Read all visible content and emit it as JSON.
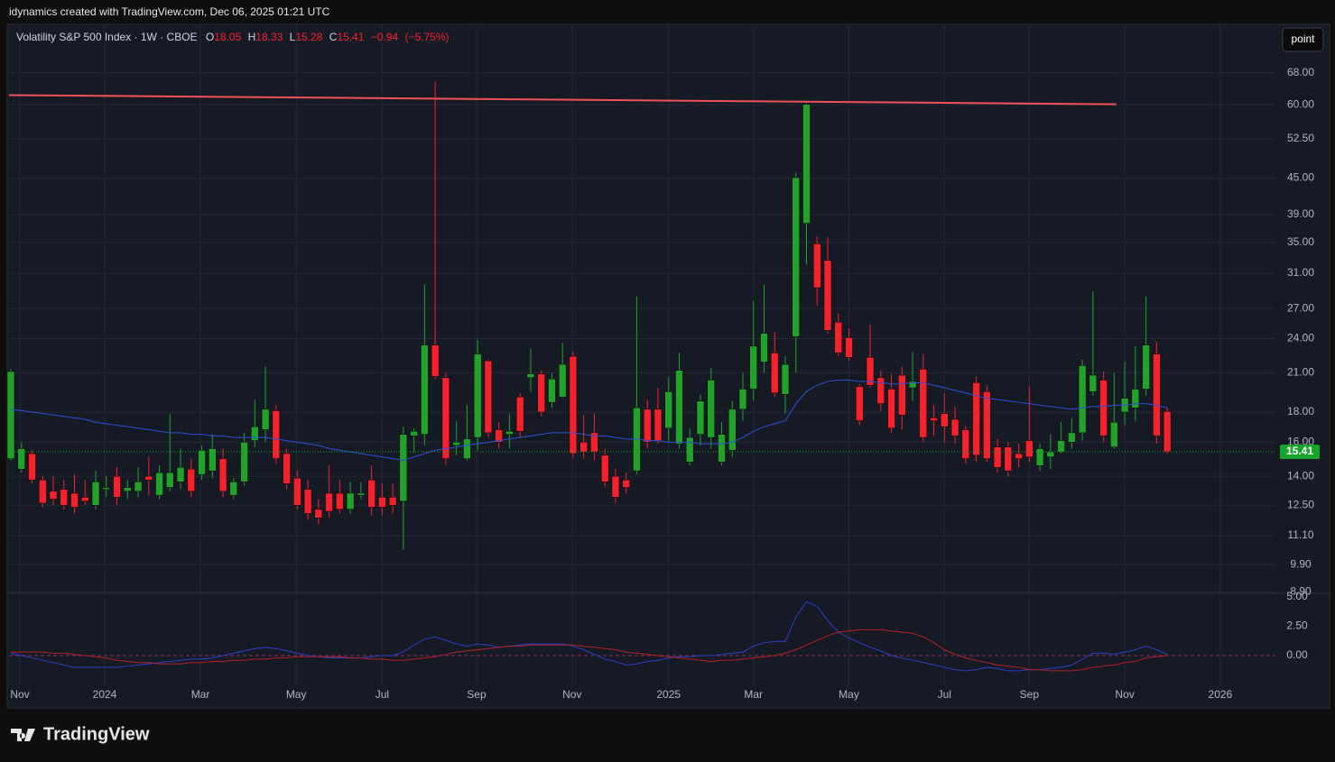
{
  "header": {
    "caption": "idynamics created with TradingView.com, Dec 06, 2025 01:21 UTC",
    "button": "point"
  },
  "footer": {
    "brand": "TradingView"
  },
  "chart_data": [
    {
      "type": "candlestick",
      "title": "Volatility S&P 500 Index · 1W · CBOE",
      "ohlc_letters": [
        "O",
        "H",
        "L",
        "C"
      ],
      "change": {
        "value": -0.94,
        "label": "−0.94"
      },
      "change_percent": {
        "value": -5.75,
        "label": "(−5.75%)"
      },
      "up_color": "#22a22b",
      "down_color": "#f5212c",
      "log_scale": true,
      "grid": true,
      "ylim": [
        8.85,
        81.9
      ],
      "yticks": [
        {
          "value": 68,
          "label": "68.00"
        },
        {
          "value": 60,
          "label": "60.00"
        },
        {
          "value": 52.5,
          "label": "52.50"
        },
        {
          "value": 45,
          "label": "45.00"
        },
        {
          "value": 39,
          "label": "39.00"
        },
        {
          "value": 35,
          "label": "35.00"
        },
        {
          "value": 31,
          "label": "31.00"
        },
        {
          "value": 27,
          "label": "27.00"
        },
        {
          "value": 24,
          "label": "24.00"
        },
        {
          "value": 21,
          "label": "21.00"
        },
        {
          "value": 18,
          "label": "18.00"
        },
        {
          "value": 16,
          "label": "16.00"
        },
        {
          "value": 14,
          "label": "14.00"
        },
        {
          "value": 12.5,
          "label": "12.50"
        },
        {
          "value": 11.1,
          "label": "11.10"
        },
        {
          "value": 9.9,
          "label": "9.90"
        },
        {
          "value": 8.9,
          "label": "8.90"
        }
      ],
      "xlim": [
        -0.17,
        119.2
      ],
      "xticks": [
        {
          "value": 0.85,
          "label": "Nov"
        },
        {
          "value": 8.85,
          "label": "2024"
        },
        {
          "value": 17.87,
          "label": "Mar"
        },
        {
          "value": 26.9,
          "label": "May"
        },
        {
          "value": 35.0,
          "label": "Jul"
        },
        {
          "value": 43.9,
          "label": "Sep"
        },
        {
          "value": 52.9,
          "label": "Nov"
        },
        {
          "value": 62.0,
          "label": "2025"
        },
        {
          "value": 70.0,
          "label": "Mar"
        },
        {
          "value": 79.0,
          "label": "May"
        },
        {
          "value": 88.0,
          "label": "Jul"
        },
        {
          "value": 96.0,
          "label": "Sep"
        },
        {
          "value": 105.0,
          "label": "Nov"
        },
        {
          "value": 114.0,
          "label": "2026"
        }
      ],
      "open": [
        15.0,
        14.4,
        15.3,
        13.8,
        13.2,
        13.3,
        13.1,
        12.9,
        12.5,
        13.3,
        14.0,
        13.2,
        13.2,
        14.0,
        13.0,
        13.4,
        13.7,
        14.4,
        14.1,
        14.3,
        15.0,
        13.0,
        13.7,
        16.1,
        16.8,
        18.1,
        15.3,
        13.9,
        13.3,
        12.3,
        13.1,
        13.1,
        12.3,
        13.0,
        13.8,
        12.9,
        12.9,
        12.7,
        16.4,
        16.5,
        23.4,
        20.6,
        15.8,
        15.0,
        16.3,
        22.0,
        16.8,
        16.5,
        19.1,
        20.6,
        20.9,
        18.7,
        19.1,
        22.4,
        16.0,
        16.6,
        15.2,
        14.0,
        13.8,
        14.3,
        18.2,
        18.2,
        16.9,
        15.9,
        14.8,
        16.5,
        16.3,
        14.8,
        15.5,
        18.2,
        19.7,
        21.9,
        22.7,
        19.3,
        24.2,
        37.7,
        34.8,
        32.6,
        25.6,
        24.1,
        19.9,
        22.3,
        20.6,
        19.7,
        20.8,
        19.8,
        21.3,
        17.6,
        17.9,
        17.5,
        16.8,
        20.2,
        19.5,
        15.7,
        15.7,
        15.3,
        16.1,
        14.6,
        15.1,
        15.4,
        16.0,
        16.6,
        19.5,
        20.4,
        15.7,
        18.0,
        18.3,
        19.7,
        22.6,
        18.05
      ],
      "high": [
        21.3,
        16.0,
        15.5,
        14.0,
        14.0,
        13.8,
        14.1,
        13.8,
        14.3,
        14.0,
        14.5,
        13.8,
        14.5,
        15.1,
        14.6,
        17.9,
        15.6,
        15.0,
        15.8,
        16.5,
        15.6,
        13.9,
        16.6,
        18.9,
        21.5,
        18.5,
        15.6,
        14.3,
        13.8,
        12.8,
        14.6,
        13.8,
        13.7,
        13.7,
        14.6,
        13.6,
        13.6,
        17.0,
        16.9,
        29.7,
        65.7,
        21.0,
        17.4,
        18.5,
        23.9,
        22.1,
        17.3,
        17.9,
        19.4,
        23.1,
        21.2,
        21.0,
        23.6,
        22.8,
        17.8,
        17.9,
        15.6,
        14.4,
        14.2,
        28.3,
        18.9,
        19.8,
        20.6,
        22.7,
        16.9,
        19.3,
        21.4,
        17.3,
        18.8,
        21.0,
        27.8,
        29.6,
        24.6,
        22.4,
        46.0,
        60.3,
        35.8,
        35.7,
        26.5,
        25.0,
        20.1,
        25.4,
        21.2,
        20.9,
        21.5,
        22.8,
        22.6,
        18.5,
        19.4,
        18.4,
        17.1,
        20.7,
        20.0,
        16.2,
        16.0,
        15.9,
        19.9,
        15.9,
        16.5,
        17.3,
        17.6,
        22.1,
        28.9,
        21.1,
        21.0,
        21.9,
        23.3,
        28.3,
        23.7,
        18.33
      ],
      "low": [
        14.9,
        14.2,
        13.6,
        12.4,
        12.5,
        12.3,
        12.1,
        12.5,
        12.3,
        12.9,
        12.5,
        12.8,
        12.9,
        13.0,
        12.8,
        13.2,
        13.3,
        12.9,
        13.8,
        13.9,
        12.9,
        12.8,
        13.5,
        15.7,
        16.0,
        14.7,
        13.3,
        12.3,
        11.8,
        11.6,
        11.9,
        12.1,
        12.1,
        12.8,
        12.0,
        12.0,
        12.1,
        10.5,
        15.4,
        15.8,
        20.5,
        14.6,
        15.2,
        14.9,
        15.5,
        16.3,
        15.6,
        15.6,
        16.3,
        19.5,
        17.7,
        18.3,
        19.0,
        15.0,
        15.0,
        14.9,
        13.4,
        12.6,
        13.1,
        14.1,
        15.6,
        15.9,
        16.0,
        15.6,
        14.6,
        15.8,
        15.6,
        14.6,
        15.1,
        17.4,
        18.8,
        21.0,
        19.1,
        17.9,
        21.0,
        32.1,
        27.3,
        24.5,
        22.4,
        22.0,
        17.1,
        19.8,
        18.1,
        16.6,
        16.8,
        18.8,
        16.0,
        16.4,
        16.0,
        15.9,
        14.7,
        14.8,
        14.8,
        14.2,
        14.0,
        14.5,
        14.8,
        14.3,
        14.4,
        15.3,
        15.6,
        16.1,
        19.2,
        16.0,
        15.6,
        17.1,
        17.4,
        19.2,
        15.9,
        15.28
      ],
      "close": [
        21.1,
        15.6,
        13.8,
        12.6,
        12.8,
        12.5,
        12.4,
        12.7,
        13.7,
        13.4,
        12.9,
        13.4,
        13.7,
        13.8,
        14.2,
        14.2,
        14.5,
        13.2,
        15.5,
        15.6,
        13.2,
        13.7,
        16.0,
        17.0,
        18.2,
        15.0,
        13.6,
        12.5,
        12.1,
        11.9,
        12.2,
        12.3,
        13.1,
        13.1,
        12.4,
        12.4,
        12.5,
        16.5,
        16.7,
        23.4,
        20.7,
        15.0,
        16.0,
        16.2,
        22.6,
        16.6,
        16.0,
        16.7,
        16.7,
        20.9,
        18.0,
        20.5,
        21.7,
        15.3,
        15.4,
        15.4,
        13.7,
        12.9,
        13.4,
        18.3,
        16.0,
        16.1,
        19.5,
        21.2,
        16.3,
        18.8,
        20.4,
        16.5,
        18.2,
        19.7,
        23.3,
        24.5,
        19.4,
        21.7,
        45.1,
        60.1,
        29.3,
        24.8,
        22.7,
        22.3,
        17.4,
        20.0,
        18.6,
        16.9,
        17.8,
        20.3,
        16.3,
        17.4,
        17.0,
        16.4,
        15.0,
        15.2,
        15.0,
        14.5,
        14.3,
        15.0,
        15.1,
        15.6,
        15.4,
        16.1,
        16.6,
        21.6,
        20.8,
        16.4,
        17.3,
        19.0,
        19.7,
        23.4,
        16.4,
        15.41
      ],
      "ma": {
        "color": "#2f4fd6",
        "values": [
          18.2,
          18.1,
          18.0,
          17.9,
          17.8,
          17.7,
          17.6,
          17.5,
          17.3,
          17.2,
          17.1,
          17.0,
          16.9,
          16.8,
          16.7,
          16.6,
          16.6,
          16.5,
          16.5,
          16.4,
          16.4,
          16.3,
          16.3,
          16.3,
          16.3,
          16.2,
          16.1,
          16.0,
          15.9,
          15.8,
          15.6,
          15.5,
          15.4,
          15.3,
          15.2,
          15.1,
          15.0,
          14.9,
          15.1,
          15.3,
          15.5,
          15.6,
          15.7,
          15.8,
          15.9,
          16.0,
          16.1,
          16.2,
          16.3,
          16.4,
          16.5,
          16.6,
          16.6,
          16.6,
          16.5,
          16.4,
          16.4,
          16.3,
          16.2,
          16.2,
          16.1,
          16.1,
          16.0,
          16.0,
          16.0,
          15.9,
          15.9,
          15.9,
          16.0,
          16.3,
          16.7,
          17.0,
          17.2,
          17.4,
          18.6,
          19.5,
          20.0,
          20.3,
          20.4,
          20.4,
          20.3,
          20.3,
          20.2,
          20.1,
          20.1,
          20.2,
          20.2,
          20.0,
          19.8,
          19.6,
          19.4,
          19.2,
          19.0,
          18.9,
          18.8,
          18.7,
          18.6,
          18.5,
          18.4,
          18.3,
          18.2,
          18.3,
          18.4,
          18.4,
          18.5,
          18.5,
          18.6,
          18.6,
          18.5,
          18.3
        ]
      },
      "trend_line": {
        "color": "#f0525a",
        "x": [
          -0.17,
          104.2
        ],
        "y": [
          62.3,
          60.1
        ]
      },
      "last_price_color": "#16a52a"
    },
    {
      "type": "line",
      "ylim": [
        -2.54,
        5.31
      ],
      "yticks": [
        {
          "value": 5,
          "label": "5.00"
        },
        {
          "value": 2.5,
          "label": "2.50"
        },
        {
          "value": 0,
          "label": "0.00"
        }
      ],
      "series": [
        {
          "color": "#2a3fc6",
          "values": [
            0.2,
            0.0,
            -0.2,
            -0.4,
            -0.6,
            -0.8,
            -1.0,
            -1.0,
            -1.0,
            -1.0,
            -1.0,
            -0.9,
            -0.8,
            -0.7,
            -0.6,
            -0.5,
            -0.4,
            -0.3,
            -0.3,
            -0.2,
            0.0,
            0.2,
            0.4,
            0.6,
            0.7,
            0.6,
            0.4,
            0.2,
            0.0,
            -0.1,
            -0.2,
            -0.2,
            -0.2,
            -0.2,
            -0.1,
            0.0,
            0.0,
            0.3,
            0.9,
            1.4,
            1.6,
            1.3,
            1.0,
            0.8,
            1.0,
            0.9,
            0.7,
            0.8,
            0.9,
            1.0,
            1.0,
            1.0,
            1.0,
            0.8,
            0.5,
            0.1,
            -0.3,
            -0.5,
            -0.8,
            -0.7,
            -0.5,
            -0.4,
            -0.2,
            -0.1,
            -0.1,
            0.0,
            0.0,
            0.1,
            0.2,
            0.3,
            0.8,
            1.1,
            1.2,
            1.2,
            3.3,
            4.6,
            4.2,
            3.0,
            2.0,
            1.5,
            1.1,
            0.7,
            0.4,
            0.0,
            -0.2,
            -0.4,
            -0.6,
            -0.8,
            -1.0,
            -1.2,
            -1.3,
            -1.2,
            -1.0,
            -1.1,
            -1.3,
            -1.3,
            -1.2,
            -1.2,
            -1.1,
            -1.0,
            -0.8,
            -0.3,
            0.2,
            0.2,
            0.1,
            0.3,
            0.5,
            0.8,
            0.5,
            0.1
          ]
        },
        {
          "color": "#b3202a",
          "values": [
            0.3,
            0.3,
            0.3,
            0.3,
            0.2,
            0.2,
            0.1,
            0.0,
            -0.1,
            -0.2,
            -0.4,
            -0.5,
            -0.6,
            -0.6,
            -0.7,
            -0.7,
            -0.7,
            -0.6,
            -0.6,
            -0.5,
            -0.5,
            -0.4,
            -0.4,
            -0.3,
            -0.3,
            -0.2,
            -0.2,
            -0.1,
            -0.1,
            -0.1,
            -0.1,
            -0.1,
            -0.2,
            -0.2,
            -0.3,
            -0.3,
            -0.4,
            -0.4,
            -0.3,
            -0.2,
            -0.1,
            0.1,
            0.3,
            0.4,
            0.5,
            0.6,
            0.7,
            0.8,
            0.8,
            0.9,
            0.9,
            0.9,
            0.9,
            0.9,
            0.8,
            0.7,
            0.6,
            0.5,
            0.3,
            0.2,
            0.1,
            0.0,
            -0.1,
            -0.2,
            -0.3,
            -0.4,
            -0.5,
            -0.4,
            -0.4,
            -0.3,
            -0.2,
            -0.1,
            0.0,
            0.2,
            0.5,
            0.9,
            1.3,
            1.7,
            2.0,
            2.1,
            2.2,
            2.2,
            2.2,
            2.1,
            2.0,
            1.9,
            1.6,
            1.1,
            0.5,
            0.1,
            -0.2,
            -0.4,
            -0.6,
            -0.8,
            -0.9,
            -1.0,
            -1.2,
            -1.2,
            -1.3,
            -1.3,
            -1.3,
            -1.2,
            -1.0,
            -0.9,
            -0.8,
            -0.6,
            -0.5,
            -0.2,
            -0.1,
            0.0
          ]
        }
      ],
      "zero_line_color": "#8a2f5a"
    }
  ]
}
